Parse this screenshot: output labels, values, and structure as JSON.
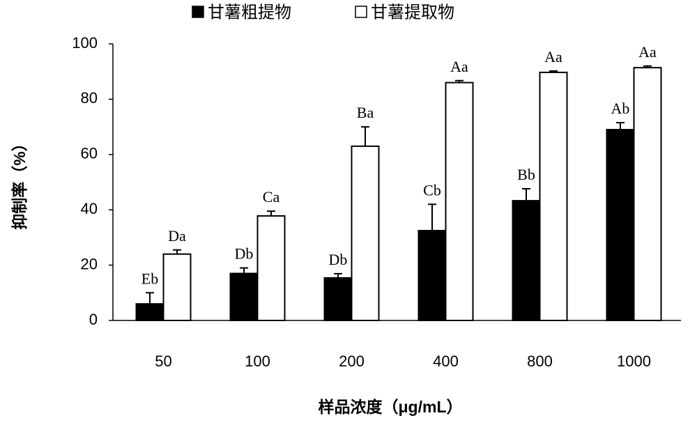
{
  "chart_data": {
    "type": "bar",
    "x_label": "样品浓度（μg/mL）",
    "y_label": "抑制率（%）",
    "categories": [
      "50",
      "100",
      "200",
      "400",
      "800",
      "1000"
    ],
    "series": [
      {
        "name": "甘薯粗提物",
        "color": "#000000",
        "values": [
          6,
          17,
          15.4,
          32.5,
          43.3,
          69
        ],
        "errors": [
          4,
          2,
          1.5,
          9.5,
          4.3,
          2.5
        ],
        "labels": [
          "Eb",
          "Db",
          "Db",
          "Cb",
          "Bb",
          "Ab"
        ]
      },
      {
        "name": "甘薯提取物",
        "color": "#ffffff",
        "values": [
          24,
          37.8,
          63,
          86,
          89.7,
          91.4
        ],
        "errors": [
          1.5,
          1.7,
          7,
          0.7,
          0.5,
          0.6
        ],
        "labels": [
          "Da",
          "Ca",
          "Ba",
          "Aa",
          "Aa",
          "Aa"
        ]
      }
    ],
    "ylim": [
      0,
      100
    ],
    "yticks": [
      0,
      20,
      40,
      60,
      80,
      100
    ],
    "grid": false,
    "legend": "top"
  }
}
